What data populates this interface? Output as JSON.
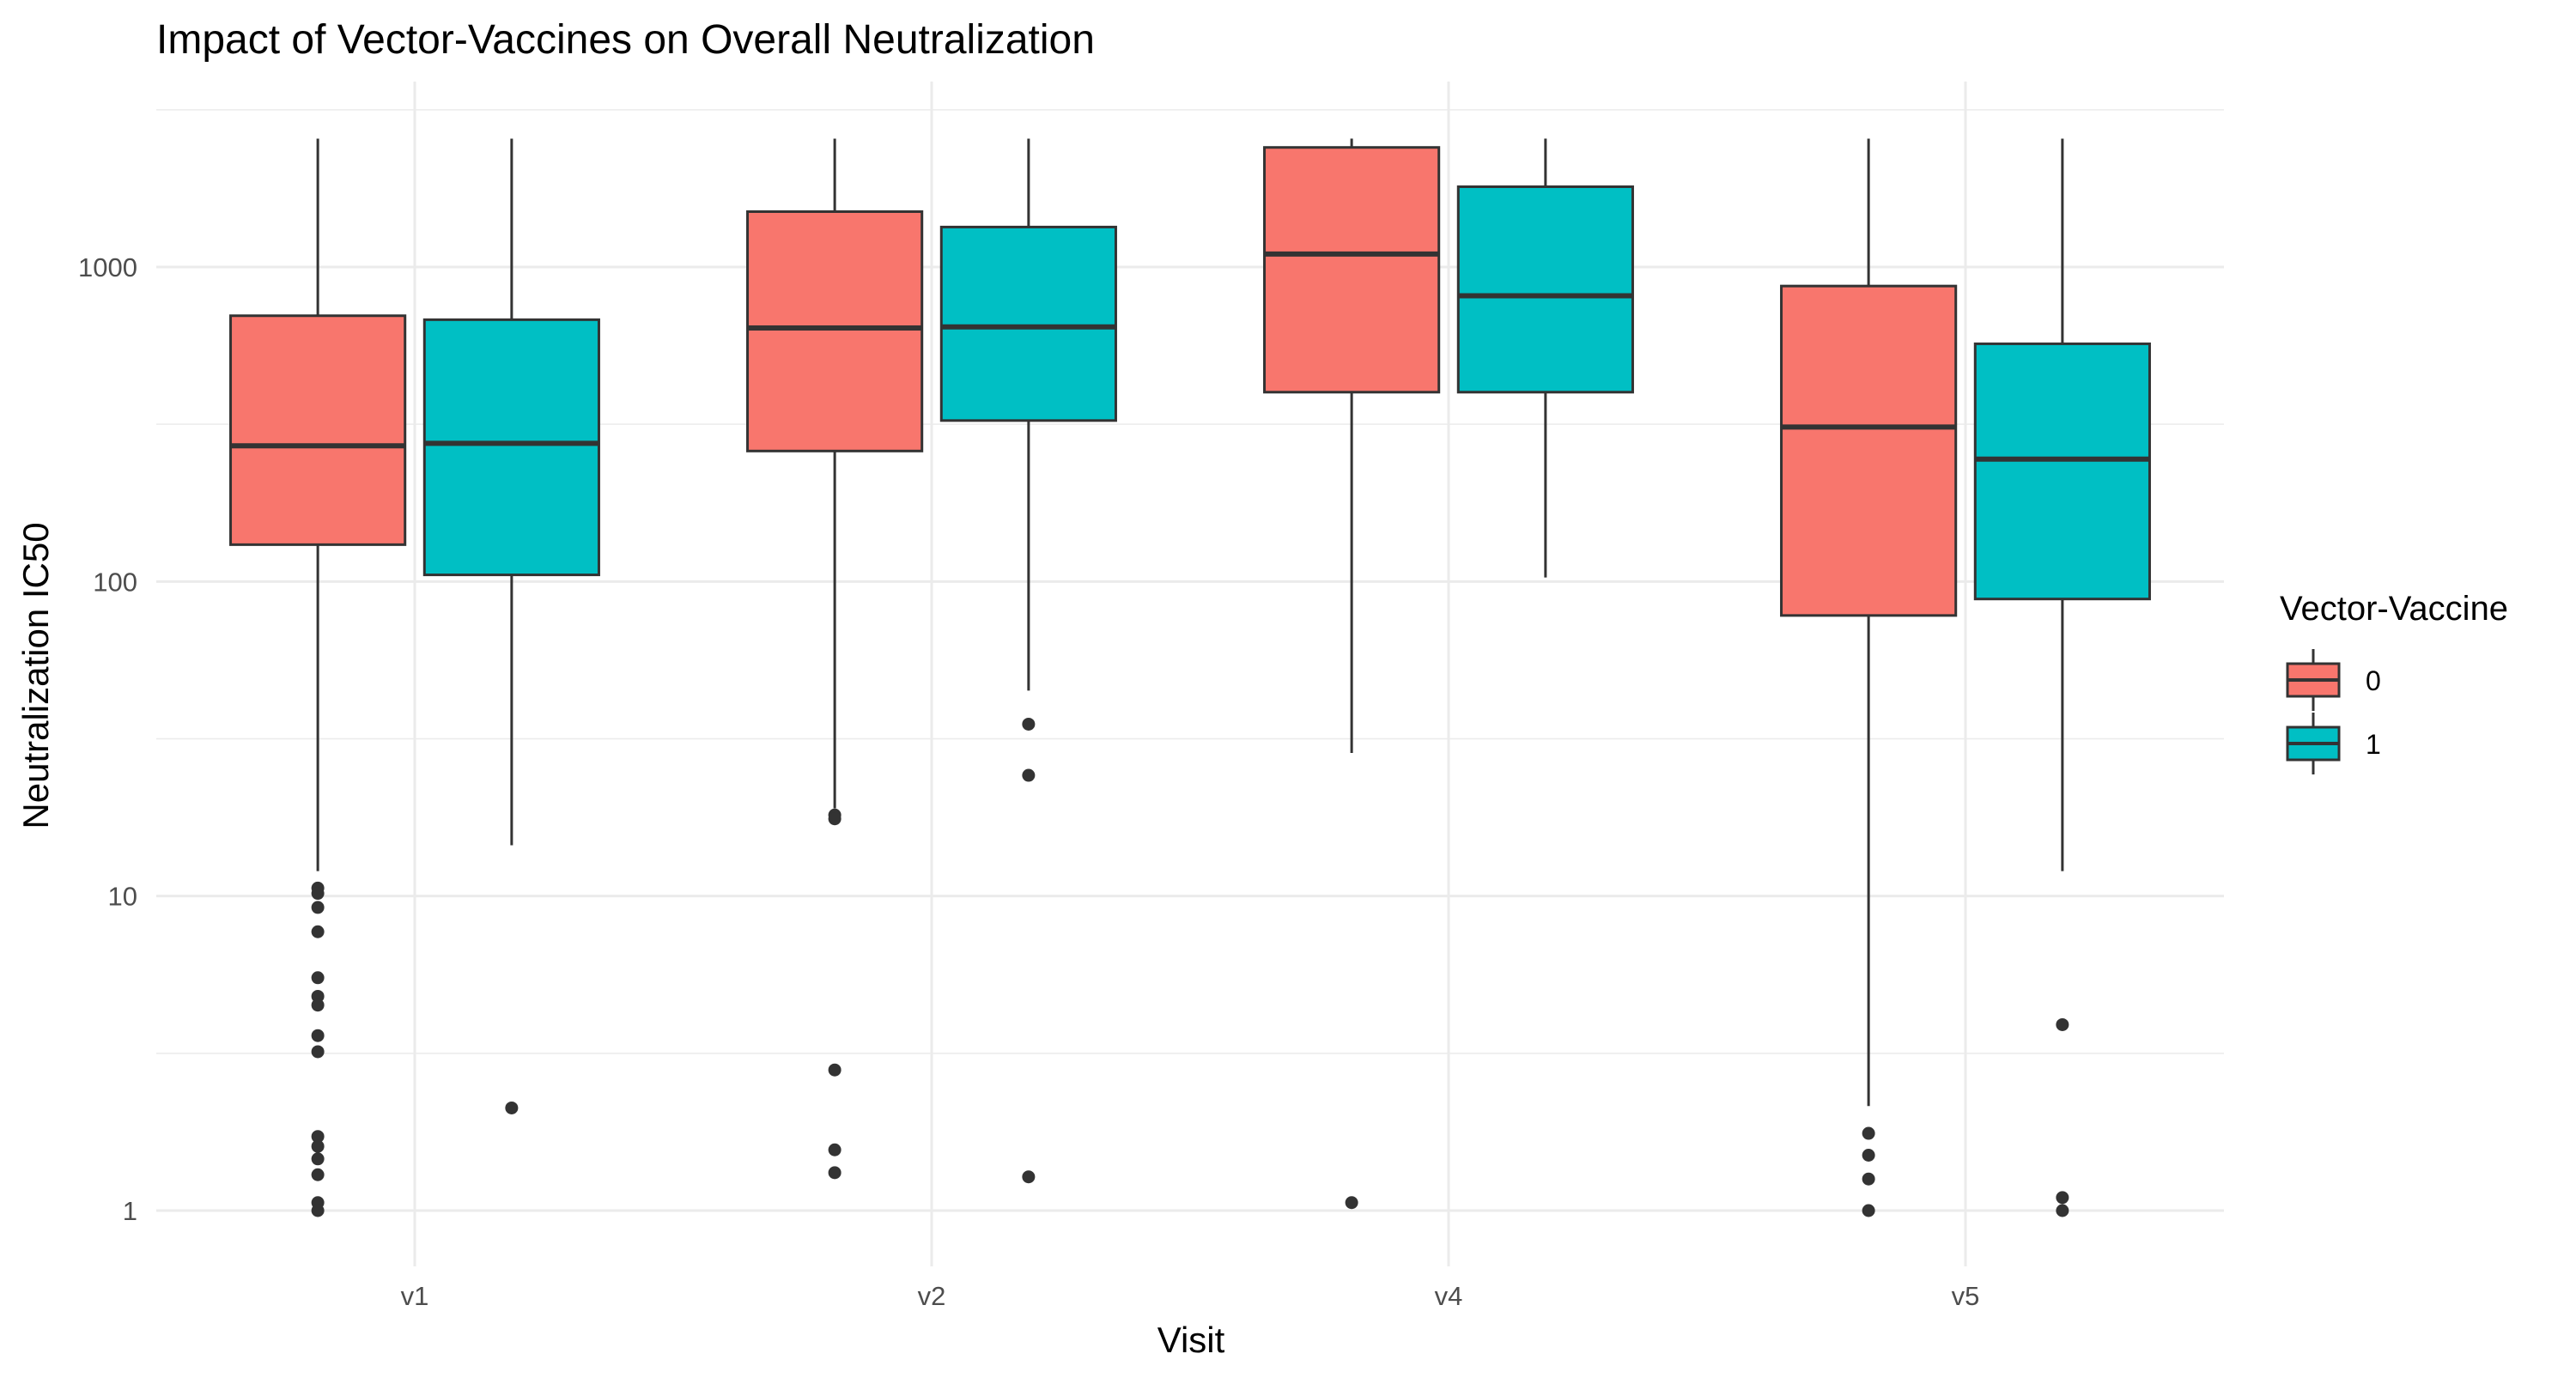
{
  "chart_data": {
    "type": "box",
    "title": "Impact of Vector-Vaccines on Overall Neutralization",
    "xlabel": "Visit",
    "ylabel": "Neutralization IC50",
    "y_scale": "log10",
    "ylim": [
      0.77,
      3400
    ],
    "yticks": [
      1,
      10,
      100,
      1000
    ],
    "ytick_labels": [
      "1",
      "10",
      "100",
      "1000"
    ],
    "grid": true,
    "categories": [
      "v1",
      "v2",
      "v4",
      "v5"
    ],
    "legend": {
      "title": "Vector-Vaccine",
      "position": "right",
      "entries": [
        {
          "label": "0",
          "color": "#F8766D"
        },
        {
          "label": "1",
          "color": "#00BFC4"
        }
      ]
    },
    "series": [
      {
        "name": "0",
        "color": "#F8766D",
        "boxes": [
          {
            "category": "v1",
            "whisker_low": 12,
            "q1": 131,
            "median": 270,
            "q3": 700,
            "whisker_high": 2560,
            "outliers": [
              10.6,
              10.2,
              9.2,
              7.7,
              5.5,
              4.8,
              4.5,
              3.6,
              3.2,
              1.72,
              1.6,
              1.46,
              1.3,
              1.06,
              1.0
            ]
          },
          {
            "category": "v2",
            "whisker_low": 19,
            "q1": 260,
            "median": 640,
            "q3": 1500,
            "whisker_high": 2560,
            "outliers": [
              18.1,
              17.6,
              2.8,
              1.56,
              1.32
            ]
          },
          {
            "category": "v4",
            "whisker_low": 28.5,
            "q1": 400,
            "median": 1100,
            "q3": 2400,
            "whisker_high": 2560,
            "outliers": [
              1.06
            ]
          },
          {
            "category": "v5",
            "whisker_low": 2.15,
            "q1": 78,
            "median": 310,
            "q3": 870,
            "whisker_high": 2560,
            "outliers": [
              1.76,
              1.5,
              1.26,
              1.0
            ]
          }
        ]
      },
      {
        "name": "1",
        "color": "#00BFC4",
        "boxes": [
          {
            "category": "v1",
            "whisker_low": 14.5,
            "q1": 105,
            "median": 275,
            "q3": 680,
            "whisker_high": 2560,
            "outliers": [
              2.12
            ]
          },
          {
            "category": "v2",
            "whisker_low": 45,
            "q1": 325,
            "median": 645,
            "q3": 1340,
            "whisker_high": 2560,
            "outliers": [
              35.2,
              24.2,
              1.28
            ]
          },
          {
            "category": "v4",
            "whisker_low": 103,
            "q1": 400,
            "median": 810,
            "q3": 1800,
            "whisker_high": 2560,
            "outliers": []
          },
          {
            "category": "v5",
            "whisker_low": 12,
            "q1": 88,
            "median": 245,
            "q3": 570,
            "whisker_high": 2560,
            "outliers": [
              3.9,
              1.1,
              1.0
            ]
          }
        ]
      }
    ]
  }
}
